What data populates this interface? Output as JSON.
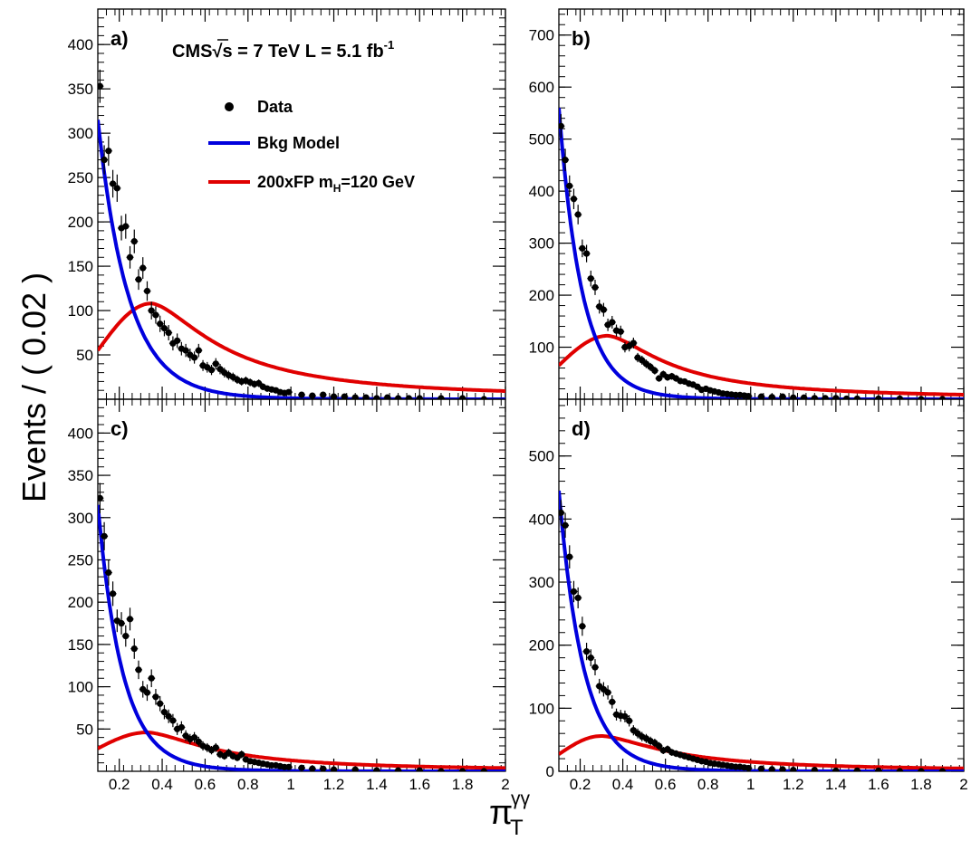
{
  "figure": {
    "ylabel": "Events / ( 0.02 )",
    "xlabel_symbol": "π",
    "xlabel_sub": "T",
    "xlabel_sup": "γγ"
  },
  "header": {
    "cms_prefix": "CMS",
    "sqrt": "√",
    "cms_s": "s",
    "cms_rest": " = 7 TeV L = 5.1 fb",
    "cms_sup": "-1"
  },
  "legend": {
    "data": "Data",
    "bkg": "Bkg Model",
    "sig_prefix": "200xFP m",
    "sig_sub": "H",
    "sig_suffix": "=120 GeV"
  },
  "colors": {
    "data": "#000000",
    "bkg": "#0000dd",
    "signal": "#e00000"
  },
  "chart_data": [
    {
      "type": "scatter",
      "panel": "a)",
      "xlim": [
        0.1,
        2.0
      ],
      "ylim": [
        0,
        440
      ],
      "xticks": [
        0.2,
        0.4,
        0.6,
        0.8,
        1.0,
        1.2,
        1.4,
        1.6,
        1.8,
        2.0
      ],
      "xtick_labels": [
        "0.2",
        "0.4",
        "0.6",
        "0.8",
        "1",
        "1.2",
        "1.4",
        "1.6",
        "1.8",
        "2"
      ],
      "yticks": [
        50,
        100,
        150,
        200,
        250,
        300,
        350,
        400
      ],
      "ytick_labels": [
        "50",
        "100",
        "150",
        "200",
        "250",
        "300",
        "350",
        "400"
      ],
      "bkg_model": {
        "a": 315,
        "k": 7.3,
        "b": 28,
        "m": 1.6
      },
      "signal_model": {
        "peak": 108,
        "xpeak": 0.35,
        "start": 55,
        "tail": 0.5
      },
      "data_points": [
        [
          0.11,
          353
        ],
        [
          0.13,
          270
        ],
        [
          0.15,
          280
        ],
        [
          0.17,
          243
        ],
        [
          0.19,
          238
        ],
        [
          0.21,
          193
        ],
        [
          0.23,
          195
        ],
        [
          0.25,
          160
        ],
        [
          0.27,
          178
        ],
        [
          0.29,
          135
        ],
        [
          0.31,
          148
        ],
        [
          0.33,
          122
        ],
        [
          0.35,
          100
        ],
        [
          0.37,
          95
        ],
        [
          0.39,
          85
        ],
        [
          0.41,
          80
        ],
        [
          0.43,
          75
        ],
        [
          0.45,
          63
        ],
        [
          0.47,
          66
        ],
        [
          0.49,
          57
        ],
        [
          0.51,
          55
        ],
        [
          0.53,
          50
        ],
        [
          0.55,
          47
        ],
        [
          0.57,
          55
        ],
        [
          0.59,
          38
        ],
        [
          0.61,
          36
        ],
        [
          0.63,
          33
        ],
        [
          0.65,
          40
        ],
        [
          0.67,
          34
        ],
        [
          0.69,
          30
        ],
        [
          0.71,
          27
        ],
        [
          0.73,
          25
        ],
        [
          0.75,
          22
        ],
        [
          0.77,
          20
        ],
        [
          0.79,
          21
        ],
        [
          0.81,
          19
        ],
        [
          0.83,
          17
        ],
        [
          0.85,
          18
        ],
        [
          0.87,
          14
        ],
        [
          0.89,
          12
        ],
        [
          0.91,
          11
        ],
        [
          0.93,
          10
        ],
        [
          0.95,
          8
        ],
        [
          0.97,
          7
        ],
        [
          0.99,
          8
        ],
        [
          1.05,
          5
        ],
        [
          1.1,
          4
        ],
        [
          1.15,
          5
        ],
        [
          1.2,
          3
        ],
        [
          1.25,
          3
        ],
        [
          1.3,
          2
        ],
        [
          1.35,
          2
        ],
        [
          1.4,
          1
        ],
        [
          1.45,
          2
        ],
        [
          1.5,
          1
        ],
        [
          1.55,
          1
        ],
        [
          1.6,
          1
        ],
        [
          1.7,
          1
        ],
        [
          1.8,
          1
        ],
        [
          1.9,
          0
        ]
      ]
    },
    {
      "type": "scatter",
      "panel": "b)",
      "xlim": [
        0.1,
        2.0
      ],
      "ylim": [
        0,
        750
      ],
      "xticks": [
        0.2,
        0.4,
        0.6,
        0.8,
        1.0,
        1.2,
        1.4,
        1.6,
        1.8,
        2.0
      ],
      "xtick_labels": [
        "0.2",
        "0.4",
        "0.6",
        "0.8",
        "1",
        "1.2",
        "1.4",
        "1.6",
        "1.8",
        "2"
      ],
      "yticks": [
        100,
        200,
        300,
        400,
        500,
        600,
        700
      ],
      "ytick_labels": [
        "100",
        "200",
        "300",
        "400",
        "500",
        "600",
        "700"
      ],
      "bkg_model": {
        "a": 560,
        "k": 9.5,
        "b": 40,
        "m": 2.0
      },
      "signal_model": {
        "peak": 122,
        "xpeak": 0.33,
        "start": 65,
        "tail": 0.45
      },
      "data_points": [
        [
          0.11,
          525
        ],
        [
          0.13,
          460
        ],
        [
          0.15,
          410
        ],
        [
          0.17,
          385
        ],
        [
          0.19,
          355
        ],
        [
          0.21,
          290
        ],
        [
          0.23,
          280
        ],
        [
          0.25,
          232
        ],
        [
          0.27,
          215
        ],
        [
          0.29,
          178
        ],
        [
          0.31,
          172
        ],
        [
          0.33,
          143
        ],
        [
          0.35,
          148
        ],
        [
          0.37,
          132
        ],
        [
          0.39,
          130
        ],
        [
          0.41,
          100
        ],
        [
          0.43,
          102
        ],
        [
          0.45,
          108
        ],
        [
          0.47,
          80
        ],
        [
          0.49,
          75
        ],
        [
          0.51,
          68
        ],
        [
          0.53,
          62
        ],
        [
          0.55,
          55
        ],
        [
          0.57,
          40
        ],
        [
          0.59,
          48
        ],
        [
          0.61,
          42
        ],
        [
          0.63,
          44
        ],
        [
          0.65,
          40
        ],
        [
          0.67,
          35
        ],
        [
          0.69,
          34
        ],
        [
          0.71,
          30
        ],
        [
          0.73,
          28
        ],
        [
          0.75,
          24
        ],
        [
          0.77,
          18
        ],
        [
          0.79,
          20
        ],
        [
          0.81,
          17
        ],
        [
          0.83,
          15
        ],
        [
          0.85,
          13
        ],
        [
          0.87,
          11
        ],
        [
          0.89,
          10
        ],
        [
          0.91,
          9
        ],
        [
          0.93,
          8
        ],
        [
          0.95,
          8
        ],
        [
          0.97,
          7
        ],
        [
          0.99,
          6
        ],
        [
          1.05,
          5
        ],
        [
          1.1,
          4
        ],
        [
          1.15,
          5
        ],
        [
          1.2,
          3
        ],
        [
          1.25,
          3
        ],
        [
          1.3,
          2
        ],
        [
          1.35,
          2
        ],
        [
          1.4,
          2
        ],
        [
          1.45,
          1
        ],
        [
          1.5,
          1
        ],
        [
          1.6,
          1
        ],
        [
          1.7,
          1
        ],
        [
          1.8,
          0
        ],
        [
          1.9,
          0
        ]
      ]
    },
    {
      "type": "scatter",
      "panel": "c)",
      "xlim": [
        0.1,
        2.0
      ],
      "ylim": [
        0,
        440
      ],
      "xticks": [
        0.2,
        0.4,
        0.6,
        0.8,
        1.0,
        1.2,
        1.4,
        1.6,
        1.8,
        2.0
      ],
      "xtick_labels": [
        "0.2",
        "0.4",
        "0.6",
        "0.8",
        "1",
        "1.2",
        "1.4",
        "1.6",
        "1.8",
        "2"
      ],
      "yticks": [
        50,
        100,
        150,
        200,
        250,
        300,
        350,
        400
      ],
      "ytick_labels": [
        "50",
        "100",
        "150",
        "200",
        "250",
        "300",
        "350",
        "400"
      ],
      "bkg_model": {
        "a": 315,
        "k": 9.0,
        "b": 25,
        "m": 1.8
      },
      "signal_model": {
        "peak": 46,
        "xpeak": 0.33,
        "start": 27,
        "tail": 0.5
      },
      "data_points": [
        [
          0.11,
          323
        ],
        [
          0.13,
          278
        ],
        [
          0.15,
          235
        ],
        [
          0.17,
          210
        ],
        [
          0.19,
          178
        ],
        [
          0.21,
          175
        ],
        [
          0.23,
          160
        ],
        [
          0.25,
          180
        ],
        [
          0.27,
          145
        ],
        [
          0.29,
          120
        ],
        [
          0.31,
          97
        ],
        [
          0.33,
          93
        ],
        [
          0.35,
          110
        ],
        [
          0.37,
          88
        ],
        [
          0.39,
          80
        ],
        [
          0.41,
          70
        ],
        [
          0.43,
          65
        ],
        [
          0.45,
          60
        ],
        [
          0.47,
          50
        ],
        [
          0.49,
          52
        ],
        [
          0.51,
          42
        ],
        [
          0.53,
          38
        ],
        [
          0.55,
          40
        ],
        [
          0.57,
          35
        ],
        [
          0.59,
          30
        ],
        [
          0.61,
          28
        ],
        [
          0.63,
          25
        ],
        [
          0.65,
          28
        ],
        [
          0.67,
          20
        ],
        [
          0.69,
          18
        ],
        [
          0.71,
          22
        ],
        [
          0.73,
          18
        ],
        [
          0.75,
          16
        ],
        [
          0.77,
          20
        ],
        [
          0.79,
          14
        ],
        [
          0.81,
          12
        ],
        [
          0.83,
          11
        ],
        [
          0.85,
          10
        ],
        [
          0.87,
          9
        ],
        [
          0.89,
          8
        ],
        [
          0.91,
          7
        ],
        [
          0.93,
          7
        ],
        [
          0.95,
          6
        ],
        [
          0.97,
          5
        ],
        [
          0.99,
          5
        ],
        [
          1.05,
          4
        ],
        [
          1.1,
          3
        ],
        [
          1.15,
          3
        ],
        [
          1.2,
          2
        ],
        [
          1.3,
          2
        ],
        [
          1.4,
          1
        ],
        [
          1.5,
          1
        ],
        [
          1.6,
          1
        ],
        [
          1.7,
          0
        ],
        [
          1.8,
          0
        ],
        [
          1.9,
          0
        ]
      ]
    },
    {
      "type": "scatter",
      "panel": "d)",
      "xlim": [
        0.1,
        2.0
      ],
      "ylim": [
        0,
        590
      ],
      "xticks": [
        0.2,
        0.4,
        0.6,
        0.8,
        1.0,
        1.2,
        1.4,
        1.6,
        1.8,
        2.0
      ],
      "xtick_labels": [
        "0.2",
        "0.4",
        "0.6",
        "0.8",
        "1",
        "1.2",
        "1.4",
        "1.6",
        "1.8",
        "2"
      ],
      "yticks": [
        0,
        100,
        200,
        300,
        400,
        500
      ],
      "ytick_labels": [
        "0",
        "100",
        "200",
        "300",
        "400",
        "500"
      ],
      "bkg_model": {
        "a": 445,
        "k": 9.0,
        "b": 35,
        "m": 1.9
      },
      "signal_model": {
        "peak": 56,
        "xpeak": 0.3,
        "start": 27,
        "tail": 0.5
      },
      "data_points": [
        [
          0.11,
          410
        ],
        [
          0.13,
          390
        ],
        [
          0.15,
          340
        ],
        [
          0.17,
          285
        ],
        [
          0.19,
          275
        ],
        [
          0.21,
          230
        ],
        [
          0.23,
          190
        ],
        [
          0.25,
          180
        ],
        [
          0.27,
          165
        ],
        [
          0.29,
          135
        ],
        [
          0.31,
          130
        ],
        [
          0.33,
          125
        ],
        [
          0.35,
          110
        ],
        [
          0.37,
          90
        ],
        [
          0.39,
          88
        ],
        [
          0.41,
          87
        ],
        [
          0.43,
          80
        ],
        [
          0.45,
          65
        ],
        [
          0.47,
          60
        ],
        [
          0.49,
          55
        ],
        [
          0.51,
          52
        ],
        [
          0.53,
          48
        ],
        [
          0.55,
          45
        ],
        [
          0.57,
          40
        ],
        [
          0.59,
          33
        ],
        [
          0.61,
          35
        ],
        [
          0.63,
          30
        ],
        [
          0.65,
          28
        ],
        [
          0.67,
          26
        ],
        [
          0.69,
          24
        ],
        [
          0.71,
          22
        ],
        [
          0.73,
          20
        ],
        [
          0.75,
          18
        ],
        [
          0.77,
          16
        ],
        [
          0.79,
          15
        ],
        [
          0.81,
          13
        ],
        [
          0.83,
          12
        ],
        [
          0.85,
          11
        ],
        [
          0.87,
          10
        ],
        [
          0.89,
          9
        ],
        [
          0.91,
          8
        ],
        [
          0.93,
          7
        ],
        [
          0.95,
          7
        ],
        [
          0.97,
          6
        ],
        [
          0.99,
          5
        ],
        [
          1.05,
          4
        ],
        [
          1.1,
          3
        ],
        [
          1.15,
          3
        ],
        [
          1.2,
          2
        ],
        [
          1.3,
          2
        ],
        [
          1.4,
          1
        ],
        [
          1.5,
          1
        ],
        [
          1.6,
          1
        ],
        [
          1.7,
          0
        ],
        [
          1.8,
          0
        ],
        [
          1.9,
          0
        ]
      ]
    }
  ]
}
